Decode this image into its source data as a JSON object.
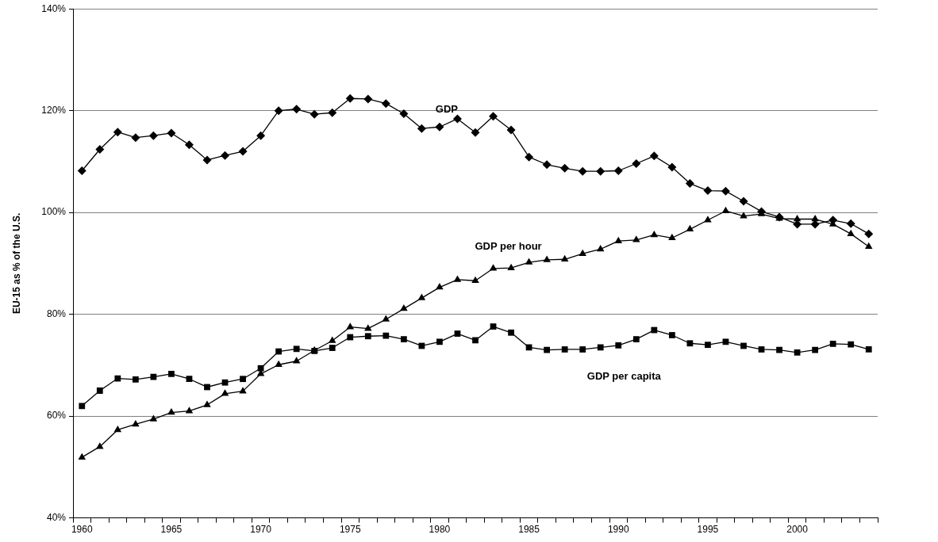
{
  "chart_data": {
    "type": "line",
    "ylabel": "EU-15 as % of the U.S.",
    "categories": [
      "1960",
      null,
      null,
      null,
      null,
      "1965",
      null,
      null,
      null,
      null,
      "1970",
      null,
      null,
      null,
      null,
      "1975",
      null,
      null,
      null,
      null,
      "1980",
      null,
      null,
      null,
      null,
      "1985",
      null,
      null,
      null,
      null,
      "1990",
      null,
      null,
      null,
      null,
      "1995",
      null,
      null,
      null,
      null,
      "2000",
      null,
      null,
      null,
      null
    ],
    "ylim": [
      40,
      140
    ],
    "yticks": [
      {
        "value": 40,
        "label": "40%"
      },
      {
        "value": 60,
        "label": "60%"
      },
      {
        "value": 80,
        "label": "80%"
      },
      {
        "value": 100,
        "label": "100%"
      },
      {
        "value": 120,
        "label": "120%"
      },
      {
        "value": 140,
        "label": "140%"
      }
    ],
    "grid": "y",
    "legend": false,
    "series": [
      {
        "name": "GDP",
        "color": "#000000",
        "marker": "diamond",
        "values": [
          108.2,
          112.4,
          115.8,
          114.7,
          115.1,
          115.6,
          113.3,
          110.3,
          111.2,
          112.0,
          115.1,
          120.0,
          120.3,
          119.3,
          119.6,
          122.4,
          122.3,
          121.4,
          119.4,
          116.5,
          116.8,
          118.4,
          115.7,
          118.9,
          116.2,
          110.9,
          109.4,
          108.7,
          108.1,
          108.1,
          108.2,
          109.6,
          111.1,
          108.9,
          105.7,
          104.3,
          104.2,
          102.2,
          100.2,
          99.1,
          97.7,
          97.7,
          98.5,
          97.8,
          95.8
        ]
      },
      {
        "name": "GDP per hour",
        "color": "#000000",
        "marker": "triangle",
        "values": [
          51.9,
          54.0,
          57.3,
          58.4,
          59.4,
          60.7,
          61.0,
          62.2,
          64.4,
          64.9,
          68.3,
          70.1,
          70.8,
          72.9,
          74.8,
          77.5,
          77.2,
          79.0,
          81.1,
          83.2,
          85.3,
          86.8,
          86.6,
          89.0,
          89.1,
          90.2,
          90.7,
          90.8,
          91.9,
          92.8,
          94.4,
          94.6,
          95.6,
          95.0,
          96.7,
          98.5,
          100.3,
          99.3,
          99.7,
          98.8,
          98.7,
          98.7,
          97.7,
          95.8,
          93.3
        ]
      },
      {
        "name": "GDP per capita",
        "color": "#000000",
        "marker": "square",
        "values": [
          62.0,
          65.0,
          67.4,
          67.2,
          67.7,
          68.3,
          67.3,
          65.7,
          66.6,
          67.3,
          69.4,
          72.7,
          73.2,
          72.8,
          73.4,
          75.5,
          75.7,
          75.8,
          75.1,
          73.8,
          74.6,
          76.2,
          74.9,
          77.6,
          76.4,
          73.5,
          73.0,
          73.1,
          73.1,
          73.5,
          73.9,
          75.1,
          76.9,
          75.9,
          74.3,
          74.0,
          74.6,
          73.8,
          73.1,
          73.0,
          72.5,
          73.0,
          74.2,
          74.1,
          73.1
        ]
      }
    ]
  }
}
